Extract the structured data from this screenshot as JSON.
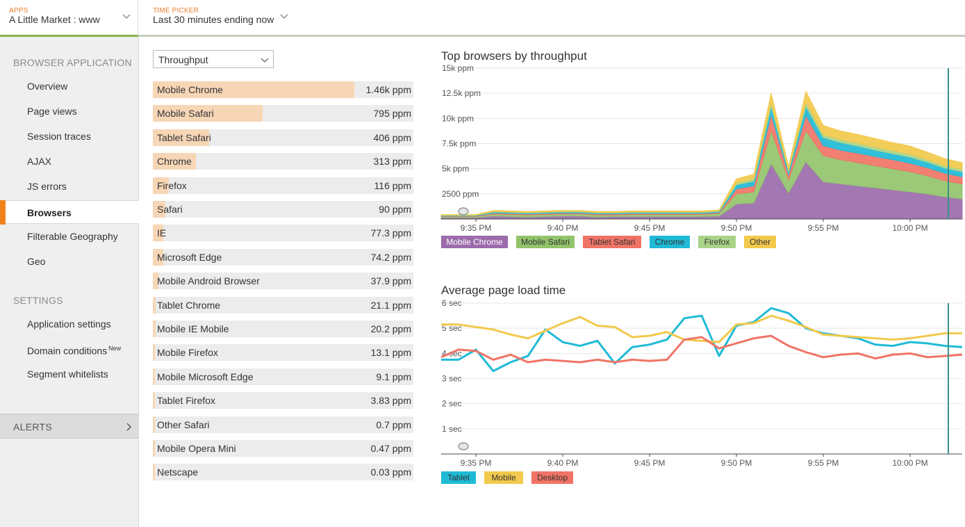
{
  "topbar": {
    "apps": {
      "kicker": "APPS",
      "value": "A Little Market : www"
    },
    "time_picker": {
      "kicker": "TIME PICKER",
      "value": "Last 30 minutes ending now"
    }
  },
  "sidebar": {
    "section_browser": "BROWSER APPLICATION",
    "browser_items": [
      {
        "label": "Overview"
      },
      {
        "label": "Page views"
      },
      {
        "label": "Session traces"
      },
      {
        "label": "AJAX"
      },
      {
        "label": "JS errors"
      },
      {
        "label": "Browsers",
        "active": true
      },
      {
        "label": "Filterable Geography"
      },
      {
        "label": "Geo"
      }
    ],
    "section_settings": "SETTINGS",
    "settings_items": [
      {
        "label": "Application settings"
      },
      {
        "label": "Domain conditions",
        "badge": "New"
      },
      {
        "label": "Segment whitelists"
      }
    ],
    "alerts": "ALERTS"
  },
  "metric_select": {
    "value": "Throughput"
  },
  "browsers": [
    {
      "name": "Mobile Chrome",
      "value": "1.46k ppm",
      "share": 1.0
    },
    {
      "name": "Mobile Safari",
      "value": "795 ppm",
      "share": 0.545
    },
    {
      "name": "Tablet Safari",
      "value": "406 ppm",
      "share": 0.278
    },
    {
      "name": "Chrome",
      "value": "313 ppm",
      "share": 0.214
    },
    {
      "name": "Firefox",
      "value": "116 ppm",
      "share": 0.08
    },
    {
      "name": "Safari",
      "value": "90 ppm",
      "share": 0.062
    },
    {
      "name": "IE",
      "value": "77.3 ppm",
      "share": 0.053
    },
    {
      "name": "Microsoft Edge",
      "value": "74.2 ppm",
      "share": 0.051
    },
    {
      "name": "Mobile Android Browser",
      "value": "37.9 ppm",
      "share": 0.026
    },
    {
      "name": "Tablet Chrome",
      "value": "21.1 ppm",
      "share": 0.014
    },
    {
      "name": "Mobile IE Mobile",
      "value": "20.2 ppm",
      "share": 0.014
    },
    {
      "name": "Mobile Firefox",
      "value": "13.1 ppm",
      "share": 0.009
    },
    {
      "name": "Mobile Microsoft Edge",
      "value": "9.1 ppm",
      "share": 0.006
    },
    {
      "name": "Tablet Firefox",
      "value": "3.83 ppm",
      "share": 0.003
    },
    {
      "name": "Other Safari",
      "value": "0.7 ppm",
      "share": 0.0005
    },
    {
      "name": "Mobile Opera Mini",
      "value": "0.47 ppm",
      "share": 0.0003
    },
    {
      "name": "Netscape",
      "value": "0.03 ppm",
      "share": 2e-05
    }
  ],
  "chart_data": [
    {
      "type": "area",
      "stacked": true,
      "title": "Top browsers by throughput",
      "x": [
        "9:33",
        "9:34",
        "9:35",
        "9:36",
        "9:37",
        "9:38",
        "9:39",
        "9:40",
        "9:41",
        "9:42",
        "9:43",
        "9:44",
        "9:45",
        "9:46",
        "9:47",
        "9:48",
        "9:49",
        "9:50",
        "9:51",
        "9:52",
        "9:53",
        "9:54",
        "9:55",
        "9:56",
        "9:57",
        "9:58",
        "9:59",
        "10:00",
        "10:01",
        "10:02",
        "10:03"
      ],
      "x_ticks": [
        "9:35 PM",
        "9:40 PM",
        "9:45 PM",
        "9:50 PM",
        "9:55 PM",
        "10:00 PM"
      ],
      "y_ticks": [
        "2500 ppm",
        "5k ppm",
        "7.5k ppm",
        "10k ppm",
        "12.5k ppm",
        "15k ppm"
      ],
      "ylim": [
        0,
        15000
      ],
      "grid": true,
      "legend_position": "bottom-left",
      "series": [
        {
          "name": "Mobile Chrome",
          "color": "#9b6bab",
          "values": [
            150,
            150,
            150,
            300,
            250,
            200,
            250,
            300,
            300,
            200,
            250,
            250,
            250,
            250,
            250,
            250,
            300,
            1500,
            1600,
            5500,
            2600,
            5700,
            3700,
            3500,
            3300,
            3100,
            2900,
            2700,
            2500,
            2200,
            2000
          ]
        },
        {
          "name": "Mobile Safari",
          "color": "#92c46b",
          "values": [
            100,
            100,
            100,
            200,
            200,
            200,
            200,
            200,
            200,
            200,
            150,
            200,
            200,
            200,
            200,
            200,
            250,
            1000,
            1100,
            3300,
            1300,
            3100,
            2600,
            2400,
            2300,
            2200,
            2100,
            2000,
            1800,
            1600,
            1500
          ]
        },
        {
          "name": "Tablet Safari",
          "color": "#f07466",
          "values": [
            50,
            50,
            50,
            100,
            100,
            100,
            100,
            100,
            100,
            100,
            100,
            100,
            100,
            100,
            100,
            100,
            100,
            500,
            600,
            1600,
            500,
            1500,
            1000,
            950,
            950,
            900,
            900,
            850,
            800,
            750,
            700
          ]
        },
        {
          "name": "Chrome",
          "color": "#1fbad6",
          "values": [
            50,
            50,
            50,
            100,
            100,
            100,
            100,
            100,
            100,
            100,
            100,
            100,
            100,
            100,
            100,
            100,
            100,
            400,
            450,
            800,
            300,
            900,
            800,
            750,
            700,
            650,
            600,
            600,
            550,
            500,
            500
          ]
        },
        {
          "name": "Firefox",
          "color": "#a9d487",
          "values": [
            30,
            30,
            30,
            50,
            50,
            50,
            50,
            50,
            50,
            50,
            50,
            50,
            50,
            50,
            50,
            50,
            50,
            200,
            250,
            400,
            150,
            400,
            300,
            300,
            300,
            300,
            300,
            300,
            250,
            250,
            250
          ]
        },
        {
          "name": "Other",
          "color": "#f2c94c",
          "values": [
            60,
            60,
            60,
            100,
            100,
            100,
            100,
            100,
            100,
            100,
            100,
            100,
            100,
            100,
            100,
            100,
            100,
            400,
            450,
            900,
            350,
            1100,
            900,
            850,
            850,
            850,
            800,
            800,
            750,
            700,
            650
          ]
        }
      ]
    },
    {
      "type": "line",
      "title": "Average page load time",
      "x": [
        "9:33",
        "9:34",
        "9:35",
        "9:36",
        "9:37",
        "9:38",
        "9:39",
        "9:40",
        "9:41",
        "9:42",
        "9:43",
        "9:44",
        "9:45",
        "9:46",
        "9:47",
        "9:48",
        "9:49",
        "9:50",
        "9:51",
        "9:52",
        "9:53",
        "9:54",
        "9:55",
        "9:56",
        "9:57",
        "9:58",
        "9:59",
        "10:00",
        "10:01",
        "10:02",
        "10:03"
      ],
      "x_ticks": [
        "9:35 PM",
        "9:40 PM",
        "9:45 PM",
        "9:50 PM",
        "9:55 PM",
        "10:00 PM"
      ],
      "y_ticks": [
        "1 sec",
        "2 sec",
        "3 sec",
        "4 sec",
        "5 sec",
        "6 sec"
      ],
      "ylim": [
        0,
        6
      ],
      "grid": true,
      "legend_position": "bottom-left",
      "series": [
        {
          "name": "Tablet",
          "color": "#1fbad6",
          "values": [
            3.75,
            3.75,
            4.15,
            3.3,
            3.65,
            3.9,
            4.95,
            4.45,
            4.3,
            4.5,
            3.6,
            4.25,
            4.35,
            4.55,
            5.4,
            5.5,
            3.9,
            5.1,
            5.25,
            5.8,
            5.6,
            5.0,
            4.8,
            4.7,
            4.6,
            4.35,
            4.3,
            4.45,
            4.4,
            4.3,
            4.25
          ]
        },
        {
          "name": "Mobile",
          "color": "#f2c94c",
          "values": [
            5.15,
            5.15,
            5.05,
            4.95,
            4.75,
            4.6,
            4.9,
            5.2,
            5.45,
            5.1,
            5.05,
            4.65,
            4.7,
            4.85,
            4.55,
            4.5,
            4.45,
            5.15,
            5.2,
            5.5,
            5.3,
            5.05,
            4.75,
            4.7,
            4.65,
            4.6,
            4.55,
            4.6,
            4.7,
            4.8,
            4.8
          ]
        },
        {
          "name": "Desktop",
          "color": "#f07466",
          "values": [
            3.85,
            4.15,
            4.1,
            3.75,
            3.95,
            3.65,
            3.75,
            3.7,
            3.65,
            3.75,
            3.65,
            3.75,
            3.7,
            3.75,
            4.55,
            4.65,
            4.2,
            4.4,
            4.6,
            4.7,
            4.3,
            4.05,
            3.85,
            3.95,
            4.0,
            3.8,
            3.95,
            4.0,
            3.85,
            3.9,
            3.95
          ]
        }
      ]
    }
  ]
}
